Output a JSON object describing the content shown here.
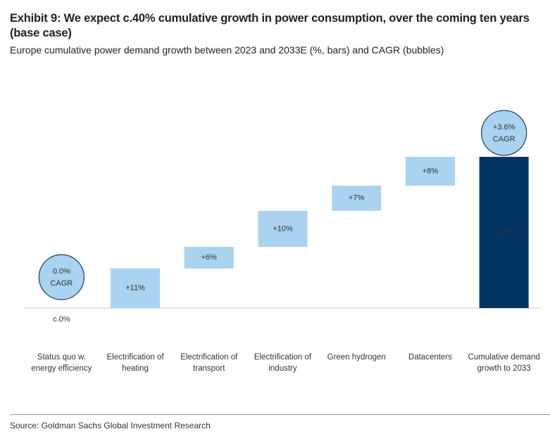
{
  "chart_data": {
    "type": "waterfall",
    "title": "Exhibit 9: We expect c.40% cumulative growth in power consumption, over the coming ten years (base case)",
    "subtitle": "Europe cumulative power demand growth between 2023 and 2033E (%, bars) and CAGR (bubbles)",
    "categories": [
      "Status quo w. energy efficiency",
      "Electrification of heating",
      "Electrification of transport",
      "Electrification of industry",
      "Green hydrogen",
      "Datacenters",
      "Cumulative demand growth to 2033"
    ],
    "values": [
      0,
      11,
      6,
      10,
      7,
      8,
      42
    ],
    "value_labels": [
      "c.0%",
      "+11%",
      "+6%",
      "+10%",
      "+7%",
      "+8%",
      "+42%"
    ],
    "is_total": [
      false,
      false,
      false,
      false,
      false,
      false,
      true
    ],
    "color": "#a9d3f0",
    "total_color": "#00335f",
    "bubbles": {
      "label": "CAGR",
      "values": [
        0.0,
        null,
        null,
        null,
        null,
        null,
        3.6
      ],
      "value_labels": [
        "0.0%",
        null,
        null,
        null,
        null,
        null,
        "+3.6%"
      ],
      "color": "#a9d3f0"
    },
    "source": "Source: Goldman Sachs Global Investment Research"
  }
}
